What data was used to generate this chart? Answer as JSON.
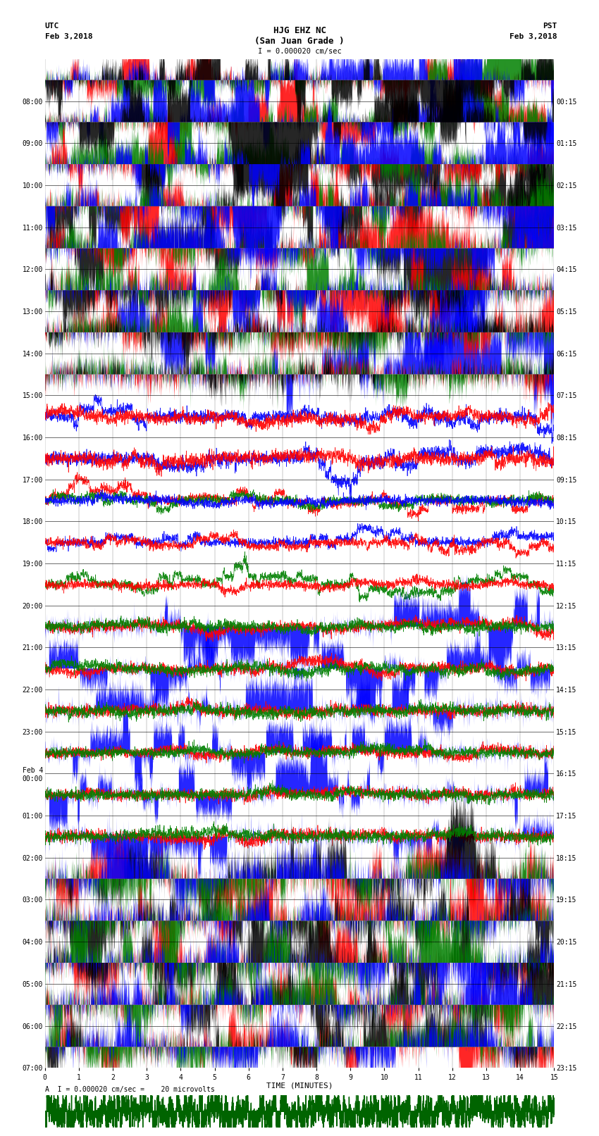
{
  "title_line1": "HJG EHZ NC",
  "title_line2": "(San Juan Grade )",
  "scale_label": "I = 0.000020 cm/sec",
  "left_label_top": "UTC",
  "left_label_date": "Feb 3,2018",
  "right_label_top": "PST",
  "right_label_date": "Feb 3,2018",
  "bottom_label": "TIME (MINUTES)",
  "bottom_note": "A  I = 0.000020 cm/sec =    20 microvolts",
  "utc_times": [
    "08:00",
    "09:00",
    "10:00",
    "11:00",
    "12:00",
    "13:00",
    "14:00",
    "15:00",
    "16:00",
    "17:00",
    "18:00",
    "19:00",
    "20:00",
    "21:00",
    "22:00",
    "23:00",
    "Feb 4\n00:00",
    "01:00",
    "02:00",
    "03:00",
    "04:00",
    "05:00",
    "06:00",
    "07:00"
  ],
  "pst_times": [
    "00:15",
    "01:15",
    "02:15",
    "03:15",
    "04:15",
    "05:15",
    "06:15",
    "07:15",
    "08:15",
    "09:15",
    "10:15",
    "11:15",
    "12:15",
    "13:15",
    "14:15",
    "15:15",
    "16:15",
    "17:15",
    "18:15",
    "19:15",
    "20:15",
    "21:15",
    "22:15",
    "23:15"
  ],
  "bgcolor": "#ffffff",
  "n_rows": 24,
  "xmax": 15,
  "row_configs": [
    {
      "amp": 10.0,
      "noise": 3.0,
      "pattern": "multi_clip"
    },
    {
      "amp": 10.0,
      "noise": 3.0,
      "pattern": "multi_clip"
    },
    {
      "amp": 10.0,
      "noise": 3.5,
      "pattern": "multi_clip_black"
    },
    {
      "amp": 10.0,
      "noise": 4.0,
      "pattern": "multi_clip_black"
    },
    {
      "amp": 12.0,
      "noise": 5.0,
      "pattern": "black_dominant"
    },
    {
      "amp": 12.0,
      "noise": 5.0,
      "pattern": "red_dominant"
    },
    {
      "amp": 12.0,
      "noise": 5.0,
      "pattern": "blue_dominant"
    },
    {
      "amp": 10.0,
      "noise": 4.0,
      "pattern": "blue_dominant"
    },
    {
      "amp": 6.0,
      "noise": 2.0,
      "pattern": "blue_sparse"
    },
    {
      "amp": 4.0,
      "noise": 1.5,
      "pattern": "blue_sparse"
    },
    {
      "amp": 1.5,
      "noise": 0.4,
      "pattern": "red_green_sparse"
    },
    {
      "amp": 1.2,
      "noise": 0.3,
      "pattern": "blue_red_sparse"
    },
    {
      "amp": 2.0,
      "noise": 0.5,
      "pattern": "green_sparse"
    },
    {
      "amp": 5.0,
      "noise": 1.5,
      "pattern": "blue_fill"
    },
    {
      "amp": 10.0,
      "noise": 3.0,
      "pattern": "blue_fill"
    },
    {
      "amp": 12.0,
      "noise": 4.0,
      "pattern": "blue_fill"
    },
    {
      "amp": 10.0,
      "noise": 3.0,
      "pattern": "blue_fill"
    },
    {
      "amp": 8.0,
      "noise": 2.5,
      "pattern": "blue_fill"
    },
    {
      "amp": 6.0,
      "noise": 2.0,
      "pattern": "blue_fill"
    },
    {
      "amp": 6.0,
      "noise": 3.0,
      "pattern": "multi_dense"
    },
    {
      "amp": 8.0,
      "noise": 4.0,
      "pattern": "red_dense"
    },
    {
      "amp": 7.0,
      "noise": 3.5,
      "pattern": "multi_dense"
    },
    {
      "amp": 8.0,
      "noise": 4.0,
      "pattern": "multi_dense"
    },
    {
      "amp": 8.0,
      "noise": 4.0,
      "pattern": "multi_dense"
    }
  ]
}
